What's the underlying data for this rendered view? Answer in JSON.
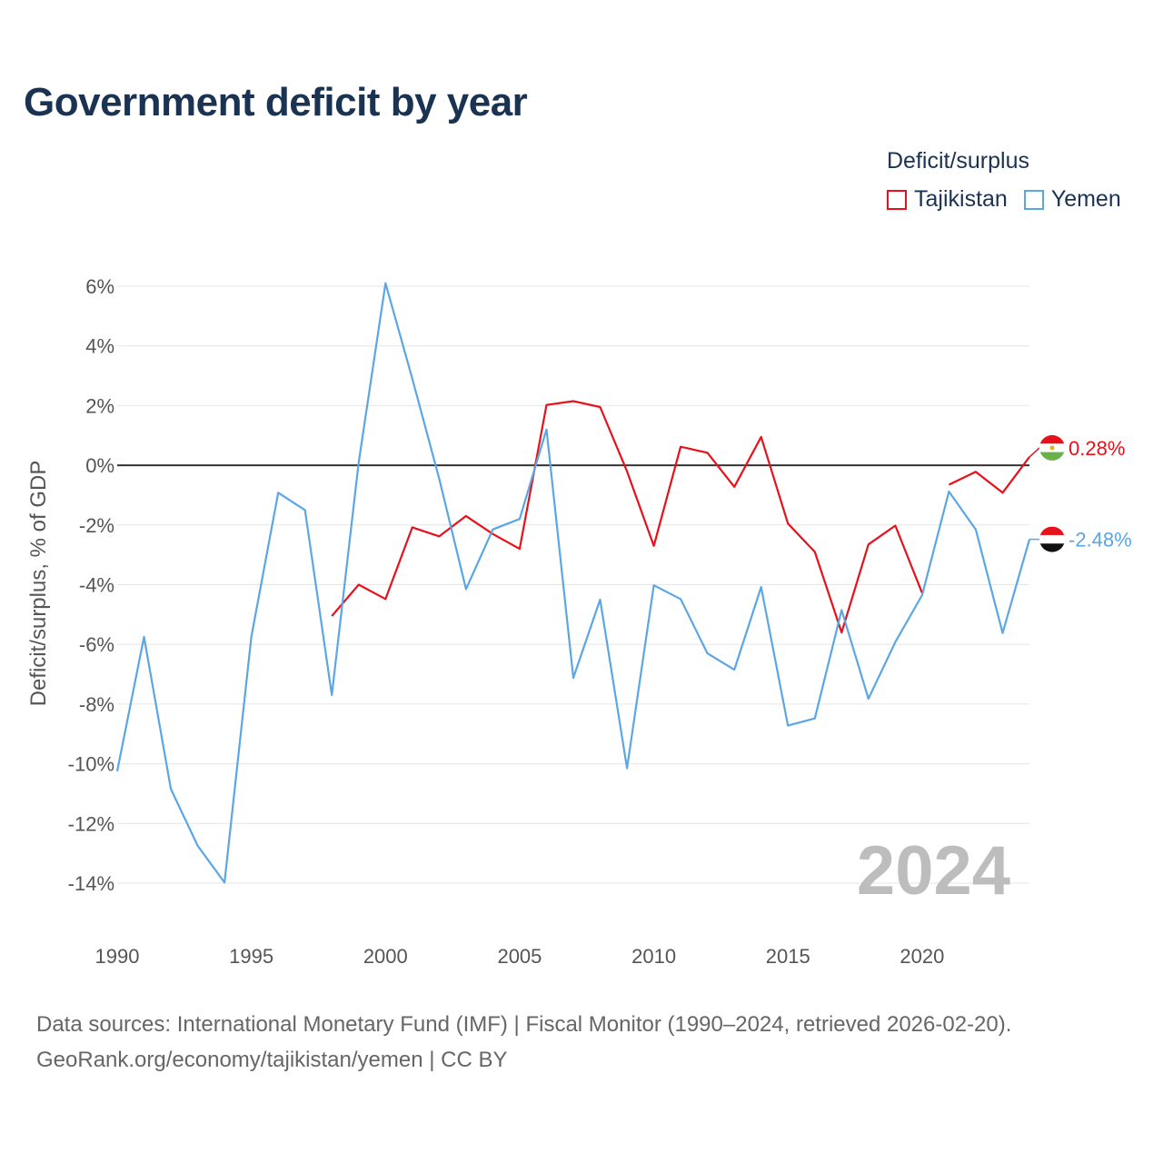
{
  "title": "Government deficit by year",
  "legend": {
    "title": "Deficit/surplus",
    "items": [
      {
        "name": "Tajikistan",
        "color": "#e8101a"
      },
      {
        "name": "Yemen",
        "color": "#5aa6e6"
      }
    ]
  },
  "source": {
    "line1": "Data sources: International Monetary Fund (IMF) | Fiscal Monitor (1990–2024, retrieved 2026-02-20).",
    "line2": "GeoRank.org/economy/tajikistan/yemen | CC BY"
  },
  "year_mark": "2024",
  "chart_data": {
    "type": "line",
    "title": "Government deficit by year",
    "xlabel": "",
    "ylabel": "Deficit/surplus, % of GDP",
    "xlim": [
      1990,
      2024
    ],
    "ylim": [
      -14,
      6
    ],
    "x_ticks": [
      1990,
      1995,
      2000,
      2005,
      2010,
      2015,
      2020
    ],
    "y_ticks": [
      6,
      4,
      2,
      0,
      -2,
      -4,
      -6,
      -8,
      -10,
      -12,
      -14
    ],
    "y_tick_labels": [
      "6%",
      "4%",
      "2%",
      "0%",
      "-2%",
      "-4%",
      "-6%",
      "-8%",
      "-10%",
      "-12%",
      "-14%"
    ],
    "series": [
      {
        "name": "Tajikistan",
        "color": "#e8101a",
        "end_label": "0.28%",
        "points": [
          [
            1998,
            -5.05
          ],
          [
            1999,
            -4.0
          ],
          [
            2000,
            -4.48
          ],
          [
            2001,
            -2.08
          ],
          [
            2002,
            -2.38
          ],
          [
            2003,
            -1.7
          ],
          [
            2004,
            -2.3
          ],
          [
            2005,
            -2.8
          ],
          [
            2006,
            2.02
          ],
          [
            2007,
            2.15
          ],
          [
            2008,
            1.95
          ],
          [
            2009,
            -0.2
          ],
          [
            2010,
            -2.7
          ],
          [
            2011,
            0.62
          ],
          [
            2012,
            0.42
          ],
          [
            2013,
            -0.72
          ],
          [
            2014,
            0.95
          ],
          [
            2015,
            -1.95
          ],
          [
            2016,
            -2.9
          ],
          [
            2017,
            -5.6
          ],
          [
            2018,
            -2.65
          ],
          [
            2019,
            -2.02
          ],
          [
            2020,
            -4.28
          ],
          [
            2021,
            -0.65
          ],
          [
            2022,
            -0.22
          ],
          [
            2023,
            -0.92
          ],
          [
            2024,
            0.28
          ]
        ]
      },
      {
        "name": "Yemen",
        "color": "#5aa6e6",
        "end_label": "-2.48%",
        "points": [
          [
            1990,
            -10.25
          ],
          [
            1991,
            -5.75
          ],
          [
            1992,
            -10.85
          ],
          [
            1993,
            -12.75
          ],
          [
            1994,
            -13.98
          ],
          [
            1995,
            -5.75
          ],
          [
            1996,
            -0.92
          ],
          [
            1997,
            -1.5
          ],
          [
            1998,
            -7.7
          ],
          [
            1999,
            0.1
          ],
          [
            2000,
            6.1
          ],
          [
            2001,
            2.9
          ],
          [
            2002,
            -0.45
          ],
          [
            2003,
            -4.15
          ],
          [
            2004,
            -2.15
          ],
          [
            2005,
            -1.8
          ],
          [
            2006,
            1.2
          ],
          [
            2007,
            -7.12
          ],
          [
            2008,
            -4.5
          ],
          [
            2009,
            -10.15
          ],
          [
            2010,
            -4.02
          ],
          [
            2011,
            -4.48
          ],
          [
            2012,
            -6.3
          ],
          [
            2013,
            -6.85
          ],
          [
            2014,
            -4.08
          ],
          [
            2015,
            -8.72
          ],
          [
            2016,
            -8.48
          ],
          [
            2017,
            -4.85
          ],
          [
            2018,
            -7.82
          ],
          [
            2019,
            -5.92
          ],
          [
            2020,
            -4.35
          ],
          [
            2021,
            -0.88
          ],
          [
            2022,
            -2.15
          ],
          [
            2023,
            -5.62
          ],
          [
            2024,
            -2.48
          ]
        ]
      }
    ]
  }
}
